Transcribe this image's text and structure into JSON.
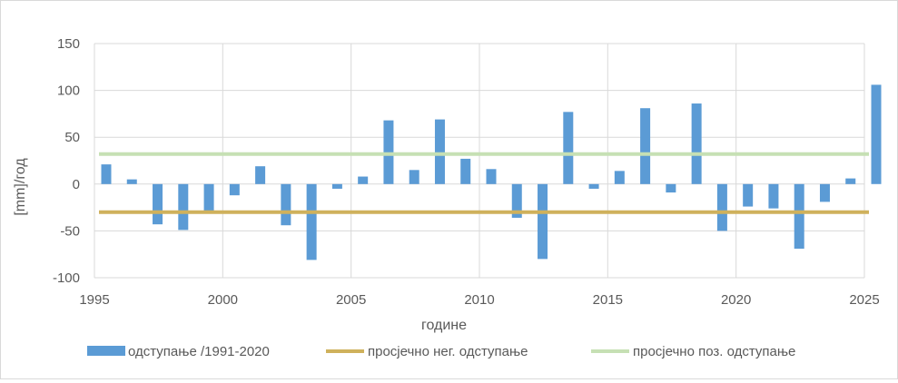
{
  "chart_data": {
    "type": "bar",
    "title": "",
    "xlabel": "године",
    "ylabel": "[mm]/год",
    "ylim": [
      -100,
      150
    ],
    "yticks": [
      150,
      100,
      50,
      0,
      -50,
      -100
    ],
    "xlim": [
      1995,
      2025
    ],
    "xticks": [
      1995,
      2000,
      2005,
      2010,
      2015,
      2020,
      2025
    ],
    "grid": "vertical and horizontal",
    "legend_position": "bottom",
    "x": [
      1995,
      1996,
      1997,
      1998,
      1999,
      2000,
      2001,
      2002,
      2003,
      2004,
      2005,
      2006,
      2007,
      2008,
      2009,
      2010,
      2011,
      2012,
      2013,
      2014,
      2015,
      2016,
      2017,
      2018,
      2019,
      2020,
      2021,
      2022,
      2023,
      2024,
      2025
    ],
    "series": [
      {
        "name": "одступање /1991-2020",
        "kind": "bar",
        "color": "#5b9bd5",
        "values": [
          21,
          5,
          -43,
          -49,
          -31,
          -12,
          19,
          -44,
          -81,
          -5,
          8,
          68,
          15,
          69,
          27,
          16,
          -36,
          -80,
          77,
          -5,
          14,
          81,
          -9,
          86,
          -50,
          -24,
          -26,
          -69,
          -19,
          6,
          106
        ]
      },
      {
        "name": "просјечно нег. одступање",
        "kind": "line",
        "color": "#cfb15c",
        "value": -30
      },
      {
        "name": "просјечно поз. одступање",
        "kind": "line",
        "color": "#c6e0b4",
        "value": 32
      }
    ]
  }
}
